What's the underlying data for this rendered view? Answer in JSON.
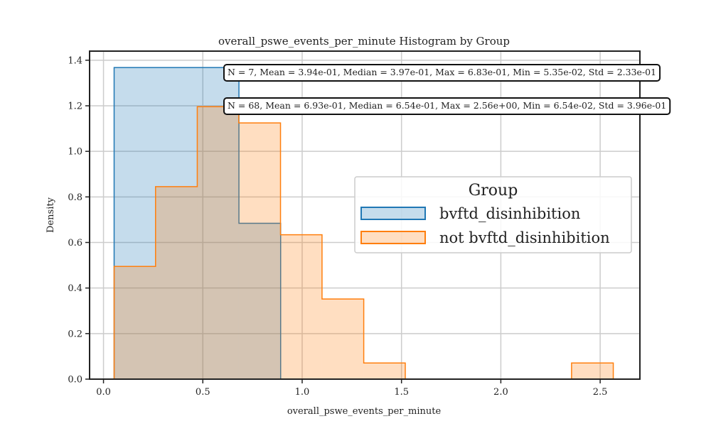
{
  "chart_data": {
    "type": "histogram",
    "title": "overall_pswe_events_per_minute Histogram by Group",
    "xlabel": "overall_pswe_events_per_minute",
    "ylabel": "Density",
    "xlim": [
      -0.07,
      2.7
    ],
    "ylim": [
      0,
      1.44
    ],
    "xticks": [
      0.0,
      0.5,
      1.0,
      1.5,
      2.0,
      2.5
    ],
    "xtick_labels": [
      "0.0",
      "0.5",
      "1.0",
      "1.5",
      "2.0",
      "2.5"
    ],
    "yticks": [
      0.0,
      0.2,
      0.4,
      0.6,
      0.8,
      1.0,
      1.2,
      1.4
    ],
    "ytick_labels": [
      "0.0",
      "0.2",
      "0.4",
      "0.6",
      "0.8",
      "1.0",
      "1.2",
      "1.4"
    ],
    "grid": true,
    "legend": {
      "title": "Group",
      "placement": "center-right"
    },
    "series": [
      {
        "name": "bvftd_disinhibition",
        "edge_color": "#1f77b4",
        "fill_color": "#1f77b4",
        "bin_edges": [
          0.0535,
          0.6818,
          0.8917
        ],
        "densities": [
          1.368,
          0.684
        ],
        "annotation": "N = 7, Mean = 3.94e-01, Median = 3.97e-01, Max = 6.83e-01, Min = 5.35e-02, Std = 2.33e-01"
      },
      {
        "name": "not bvftd_disinhibition",
        "edge_color": "#ff7f0e",
        "fill_color": "#ff7f0e",
        "bin_edges": [
          0.0535,
          0.262,
          0.472,
          0.681,
          0.891,
          1.1,
          1.31,
          1.519,
          1.728,
          1.938,
          2.147,
          2.356,
          2.566
        ],
        "densities": [
          0.495,
          0.845,
          1.196,
          1.125,
          0.634,
          0.352,
          0.071,
          0,
          0,
          0,
          0,
          0.071
        ],
        "annotation": "N = 68, Mean = 6.93e-01, Median = 6.54e-01, Max = 2.56e+00, Min = 6.54e-02, Std = 3.96e-01"
      }
    ]
  }
}
